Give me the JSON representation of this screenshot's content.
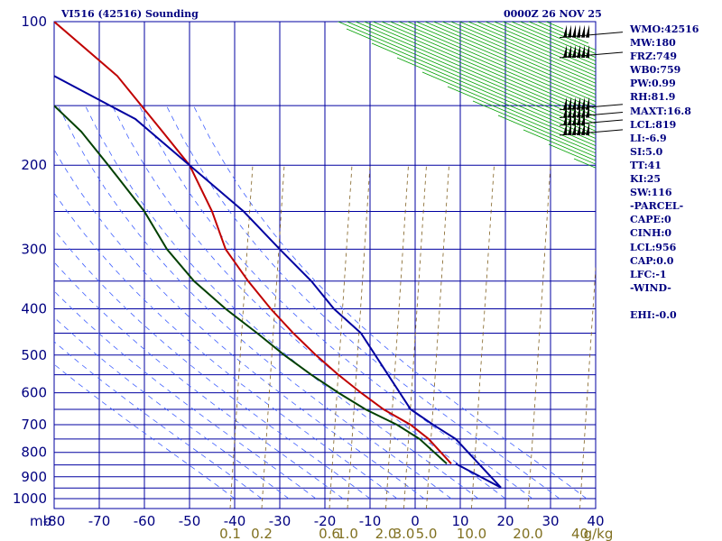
{
  "header": {
    "station_title": "VI516 (42516) Sounding",
    "valid_time": "0000Z 26 NOV 25"
  },
  "indices": [
    "WMO:42516",
    "MW:180",
    "FRZ:749",
    "WB0:759",
    "PW:0.99",
    "RH:81.9",
    "MAXT:16.8",
    "LCL:819",
    "LI:-6.9",
    "SI:5.0",
    "TT:41",
    "KI:25",
    "SW:116",
    "-PARCEL-",
    "CAPE:0",
    "CINH:0",
    "LCL:956",
    "CAP:0.0",
    "LFC:-1",
    "-WIND-",
    "",
    "EHI:-0.0"
  ],
  "colors": {
    "grid": "#0000a0",
    "dry_adiabat": "#00a000",
    "moist_adiabat": "#4060ff",
    "mixing_ratio": "#806020",
    "temperature": "#c00000",
    "dewpoint": "#004000",
    "parcel": "#0000a0",
    "mixing_label": "#807020"
  },
  "chart_data": {
    "type": "line",
    "xlim": [
      -80,
      40
    ],
    "pressure_range": [
      1000,
      100
    ],
    "pressure_levels": [
      100,
      200,
      300,
      400,
      500,
      600,
      700,
      800,
      900,
      1000
    ],
    "pressure_ticks": [
      "100",
      "200",
      "300",
      "400",
      "500",
      "600",
      "700",
      "800",
      "900",
      "1000"
    ],
    "temperature_ticks": [
      "-80",
      "-70",
      "-60",
      "-50",
      "-40",
      "-30",
      "-20",
      "-10",
      "0",
      "10",
      "20",
      "30",
      "40"
    ],
    "temperature_tick_values": [
      -80,
      -70,
      -60,
      -50,
      -40,
      -30,
      -20,
      -10,
      0,
      10,
      20,
      30,
      40
    ],
    "unit_label": "mb",
    "mixing_ratio_labels": [
      "0.1",
      "0.2",
      "0.6",
      "1.0",
      "2.0",
      "3.0",
      "5.0",
      "10.0",
      "20.0",
      "40",
      "g/kg"
    ],
    "mixing_ratio_label_x": [
      -41,
      -34,
      -19,
      -15,
      -6.5,
      -2.5,
      2.5,
      12.5,
      25,
      36.5
    ],
    "grid": true,
    "series": [
      {
        "role": "temperature",
        "points": [
          [
            8,
            845
          ],
          [
            3,
            750
          ],
          [
            -1,
            700
          ],
          [
            -7,
            650
          ],
          [
            -12,
            600
          ],
          [
            -17,
            550
          ],
          [
            -22,
            500
          ],
          [
            -27,
            450
          ],
          [
            -32,
            400
          ],
          [
            -37,
            350
          ],
          [
            -42,
            300
          ],
          [
            -45,
            250
          ],
          [
            -50,
            200
          ],
          [
            -56,
            170
          ],
          [
            -66,
            130
          ],
          [
            -80,
            100
          ]
        ]
      },
      {
        "role": "dewpoint",
        "points": [
          [
            7,
            845
          ],
          [
            1,
            750
          ],
          [
            -4,
            700
          ],
          [
            -11,
            650
          ],
          [
            -17,
            600
          ],
          [
            -23,
            550
          ],
          [
            -29,
            500
          ],
          [
            -35,
            450
          ],
          [
            -42,
            400
          ],
          [
            -49,
            350
          ],
          [
            -55,
            300
          ],
          [
            -60,
            250
          ],
          [
            -68,
            200
          ],
          [
            -74,
            170
          ],
          [
            -80,
            150
          ]
        ]
      },
      {
        "role": "parcel",
        "points": [
          [
            9,
            845
          ],
          [
            19,
            948
          ],
          [
            9,
            750
          ],
          [
            4,
            700
          ],
          [
            -1,
            650
          ],
          [
            -6,
            550
          ],
          [
            -12,
            450
          ],
          [
            -18,
            400
          ],
          [
            -23,
            350
          ],
          [
            -30,
            300
          ],
          [
            -38,
            250
          ],
          [
            -50,
            200
          ],
          [
            -62,
            160
          ],
          [
            -80,
            130
          ]
        ]
      }
    ],
    "wind_barbs": [
      {
        "pressure": 108,
        "speed_kt": 65
      },
      {
        "pressure": 119,
        "speed_kt": 55
      },
      {
        "pressure": 153,
        "speed_kt": 60
      },
      {
        "pressure": 159,
        "speed_kt": 55
      },
      {
        "pressure": 165,
        "speed_kt": 50
      },
      {
        "pressure": 173,
        "speed_kt": 55
      }
    ]
  }
}
